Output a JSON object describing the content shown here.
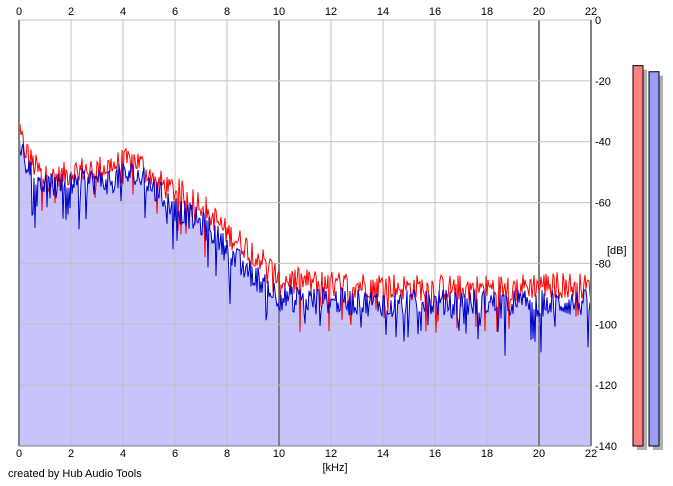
{
  "chart_data": {
    "type": "area",
    "xlabel": "[kHz]",
    "ylabel": "[dB]",
    "xlim": [
      0,
      22
    ],
    "ylim": [
      -140,
      0
    ],
    "xticks": [
      0,
      2,
      4,
      6,
      8,
      10,
      12,
      14,
      16,
      18,
      20,
      22
    ],
    "yticks": [
      0,
      -20,
      -40,
      -60,
      -80,
      -100,
      -120,
      -140
    ],
    "grid": true,
    "colors": {
      "background": "#ffffff",
      "fill": "#c6c4fb",
      "series_red": "#ff0000",
      "series_blue": "#0000cc",
      "meter_red": "#ff8080",
      "meter_blue": "#9a9cf5",
      "grid": "#c0c0c0",
      "grid_major": "#808080"
    },
    "series": [
      {
        "color": "red",
        "x": [
          0,
          0.5,
          1,
          1.5,
          2,
          2.5,
          3,
          3.5,
          4,
          4.5,
          5,
          5.5,
          6,
          6.5,
          7,
          7.5,
          8,
          8.5,
          9,
          9.5,
          10,
          11,
          12,
          13,
          14,
          15,
          16,
          17,
          18,
          19,
          20,
          21,
          22
        ],
        "values": [
          -38,
          -47,
          -52,
          -52,
          -50,
          -49,
          -49,
          -48,
          -47,
          -46,
          -50,
          -54,
          -56,
          -58,
          -60,
          -65,
          -70,
          -73,
          -76,
          -80,
          -85,
          -86,
          -87,
          -87,
          -87,
          -88,
          -88,
          -88,
          -88,
          -88,
          -87,
          -87,
          -88
        ]
      },
      {
        "color": "blue",
        "x": [
          0,
          0.5,
          1,
          1.5,
          2,
          2.5,
          3,
          3.5,
          4,
          4.5,
          5,
          5.5,
          6,
          6.5,
          7,
          7.5,
          8,
          8.5,
          9,
          9.5,
          10,
          11,
          12,
          13,
          14,
          15,
          16,
          17,
          18,
          19,
          20,
          21,
          22
        ],
        "values": [
          -40,
          -50,
          -54,
          -55,
          -54,
          -53,
          -53,
          -53,
          -51,
          -51,
          -54,
          -58,
          -62,
          -64,
          -67,
          -70,
          -76,
          -80,
          -84,
          -87,
          -91,
          -92,
          -92,
          -93,
          -93,
          -93,
          -93,
          -93,
          -93,
          -93,
          -93,
          -93,
          -93
        ]
      }
    ],
    "level_meters": [
      {
        "color": "red",
        "value": -15
      },
      {
        "color": "blue",
        "value": -17
      }
    ]
  },
  "footer": {
    "credit": "created by Hub Audio Tools"
  }
}
